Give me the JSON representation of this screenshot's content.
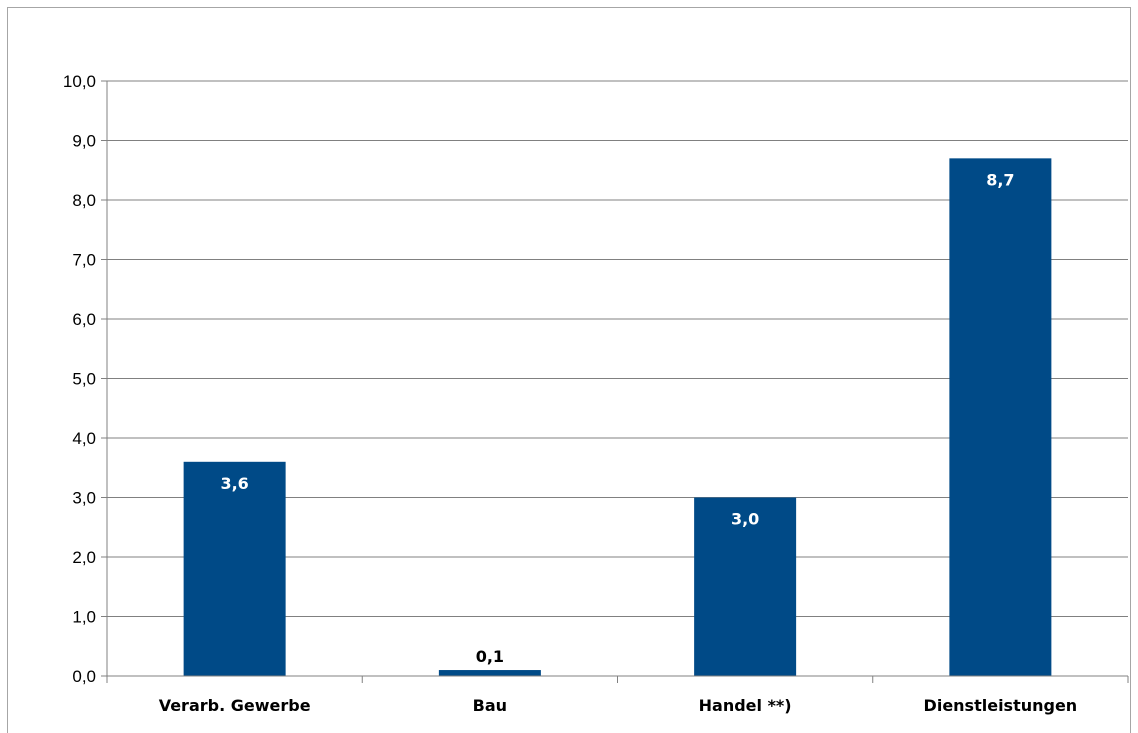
{
  "chart_data": {
    "type": "bar",
    "categories": [
      "Verarb. Gewerbe",
      "Bau",
      "Handel **)",
      "Dienstleistungen"
    ],
    "values": [
      3.6,
      0.1,
      3.0,
      8.7
    ],
    "value_labels": [
      "3,6",
      "0,1",
      "3,0",
      "8,7"
    ],
    "ylim": [
      0,
      10
    ],
    "yticks": [
      "0,0",
      "1,0",
      "2,0",
      "3,0",
      "4,0",
      "5,0",
      "6,0",
      "7,0",
      "8,0",
      "9,0",
      "10,0"
    ],
    "grid": true,
    "bar_color": "#004a87",
    "grid_color": "#808080",
    "title": "",
    "xlabel": "",
    "ylabel": ""
  }
}
